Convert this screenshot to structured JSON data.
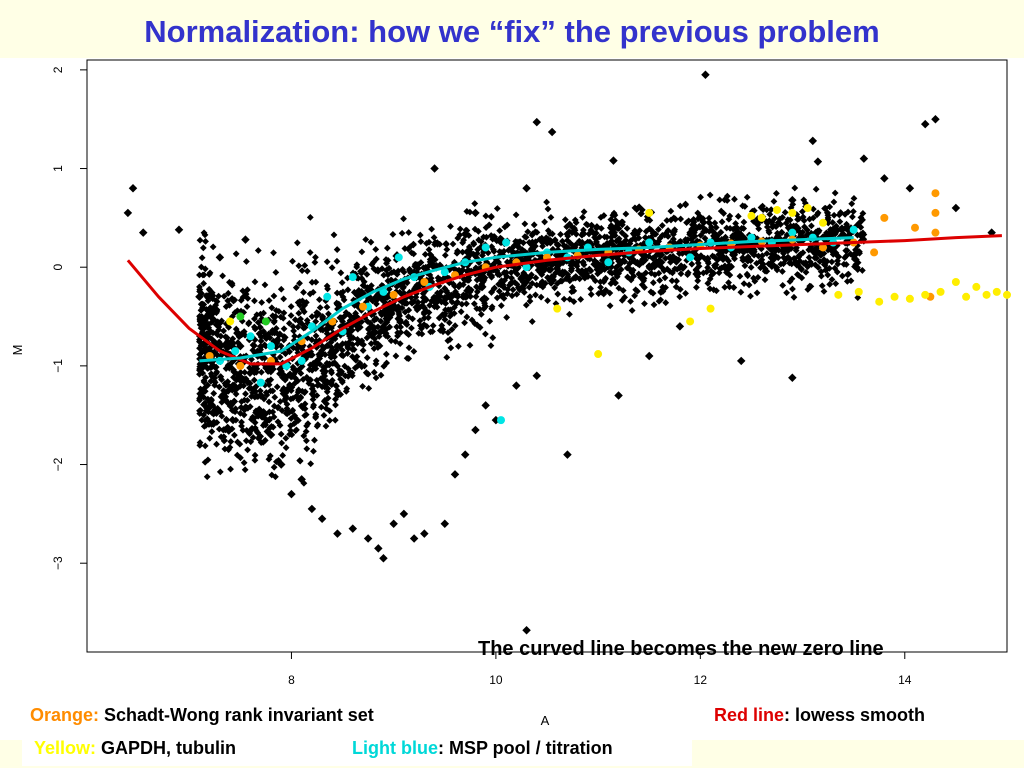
{
  "slide": {
    "title": "Normalization: how we “fix” the previous   problem",
    "annotation": "The curved line becomes the new zero line"
  },
  "legend": {
    "orange": {
      "key": "Orange:",
      "text": " Schadt-Wong rank invariant set",
      "color": "#ff8c00"
    },
    "red": {
      "key": "Red line",
      "text": ": lowess smooth",
      "color": "#dd0000"
    },
    "yellow": {
      "key": "Yellow:",
      "text": " GAPDH, tubulin",
      "color": "#ffff00"
    },
    "lightblue": {
      "key": "Light blue",
      "text": ": MSP pool / titration",
      "color": "#00e5e5"
    }
  },
  "chart_data": {
    "type": "scatter",
    "xlabel": "A",
    "ylabel": "M",
    "xlim": [
      6.0,
      15.0
    ],
    "ylim": [
      -3.9,
      2.1
    ],
    "xticks": [
      8,
      10,
      12,
      14
    ],
    "yticks": [
      -3,
      -2,
      -1,
      0,
      1,
      2
    ],
    "grid": false,
    "series": [
      {
        "color": "#000000",
        "points": [
          [
            6.4,
            0.55
          ],
          [
            6.45,
            0.8
          ],
          [
            6.55,
            0.35
          ],
          [
            6.9,
            0.38
          ],
          [
            7.1,
            -0.3
          ],
          [
            7.3,
            0.1
          ],
          [
            7.5,
            -0.8
          ],
          [
            7.55,
            0.28
          ],
          [
            7.7,
            -1.3
          ],
          [
            7.8,
            -1.7
          ],
          [
            7.9,
            -2.0
          ],
          [
            8.0,
            -2.3
          ],
          [
            8.1,
            -2.15
          ],
          [
            8.2,
            -2.45
          ],
          [
            8.3,
            -2.55
          ],
          [
            8.45,
            -2.7
          ],
          [
            8.6,
            -2.65
          ],
          [
            8.75,
            -2.75
          ],
          [
            8.85,
            -2.85
          ],
          [
            8.9,
            -2.95
          ],
          [
            9.0,
            -2.6
          ],
          [
            9.1,
            -2.5
          ],
          [
            9.2,
            -2.75
          ],
          [
            9.3,
            -2.7
          ],
          [
            9.5,
            -2.6
          ],
          [
            9.6,
            -2.1
          ],
          [
            9.7,
            -1.9
          ],
          [
            9.8,
            -1.65
          ],
          [
            9.9,
            -1.4
          ],
          [
            10.0,
            -1.55
          ],
          [
            10.2,
            -1.2
          ],
          [
            10.4,
            -1.1
          ],
          [
            10.7,
            -1.9
          ],
          [
            10.3,
            -3.68
          ],
          [
            11.2,
            -1.3
          ],
          [
            11.5,
            -0.9
          ],
          [
            11.8,
            -0.6
          ],
          [
            12.4,
            -0.95
          ],
          [
            12.9,
            -1.12
          ],
          [
            9.4,
            1.0
          ],
          [
            9.8,
            0.55
          ],
          [
            10.3,
            0.8
          ],
          [
            10.4,
            1.47
          ],
          [
            10.55,
            1.37
          ],
          [
            11.15,
            1.08
          ],
          [
            12.05,
            1.95
          ],
          [
            13.1,
            1.28
          ],
          [
            13.15,
            1.07
          ],
          [
            13.6,
            1.1
          ],
          [
            14.2,
            1.45
          ],
          [
            14.3,
            1.5
          ],
          [
            14.05,
            0.8
          ],
          [
            12.9,
            0.68
          ],
          [
            14.85,
            0.35
          ],
          [
            14.5,
            0.6
          ],
          [
            13.8,
            0.9
          ]
        ]
      },
      {
        "color": "#00e5e5",
        "points": [
          [
            7.3,
            -0.95
          ],
          [
            7.45,
            -0.85
          ],
          [
            7.6,
            -0.7
          ],
          [
            7.7,
            -1.17
          ],
          [
            7.8,
            -0.8
          ],
          [
            7.95,
            -1.0
          ],
          [
            8.1,
            -0.95
          ],
          [
            8.2,
            -0.6
          ],
          [
            8.35,
            -0.3
          ],
          [
            8.5,
            -0.65
          ],
          [
            8.6,
            -0.1
          ],
          [
            8.75,
            -0.4
          ],
          [
            8.9,
            -0.25
          ],
          [
            9.05,
            0.1
          ],
          [
            9.2,
            -0.1
          ],
          [
            9.35,
            -0.2
          ],
          [
            9.5,
            -0.05
          ],
          [
            9.7,
            0.05
          ],
          [
            9.9,
            0.2
          ],
          [
            10.1,
            0.25
          ],
          [
            10.05,
            -1.55
          ],
          [
            10.3,
            0.0
          ],
          [
            10.5,
            0.15
          ],
          [
            10.7,
            0.1
          ],
          [
            10.9,
            0.2
          ],
          [
            11.1,
            0.05
          ],
          [
            11.3,
            0.15
          ],
          [
            11.5,
            0.25
          ],
          [
            11.7,
            0.2
          ],
          [
            11.9,
            0.1
          ],
          [
            12.1,
            0.25
          ],
          [
            12.3,
            0.2
          ],
          [
            12.5,
            0.3
          ],
          [
            12.7,
            0.25
          ],
          [
            12.9,
            0.35
          ],
          [
            13.1,
            0.3
          ],
          [
            13.3,
            0.25
          ],
          [
            13.5,
            0.38
          ]
        ]
      },
      {
        "color": "#ff9900",
        "points": [
          [
            7.2,
            -0.9
          ],
          [
            7.5,
            -1.0
          ],
          [
            7.8,
            -0.95
          ],
          [
            8.1,
            -0.75
          ],
          [
            8.4,
            -0.55
          ],
          [
            8.7,
            -0.4
          ],
          [
            9.0,
            -0.28
          ],
          [
            9.3,
            -0.15
          ],
          [
            9.6,
            -0.08
          ],
          [
            9.9,
            0.0
          ],
          [
            10.2,
            0.05
          ],
          [
            10.5,
            0.1
          ],
          [
            10.8,
            0.12
          ],
          [
            11.1,
            0.15
          ],
          [
            11.4,
            0.18
          ],
          [
            11.7,
            0.2
          ],
          [
            12.0,
            0.22
          ],
          [
            12.3,
            0.24
          ],
          [
            12.6,
            0.26
          ],
          [
            12.9,
            0.28
          ],
          [
            13.2,
            0.2
          ],
          [
            13.5,
            0.25
          ],
          [
            13.8,
            0.5
          ],
          [
            14.1,
            0.4
          ],
          [
            14.3,
            0.75
          ],
          [
            14.3,
            0.55
          ],
          [
            14.3,
            0.35
          ],
          [
            13.7,
            0.15
          ],
          [
            14.25,
            -0.3
          ]
        ]
      },
      {
        "color": "#ffee00",
        "points": [
          [
            7.4,
            -0.55
          ],
          [
            10.6,
            -0.42
          ],
          [
            11.0,
            -0.88
          ],
          [
            12.1,
            -0.42
          ],
          [
            12.5,
            0.52
          ],
          [
            12.6,
            0.5
          ],
          [
            12.75,
            0.58
          ],
          [
            12.9,
            0.55
          ],
          [
            13.05,
            0.6
          ],
          [
            13.2,
            0.45
          ],
          [
            13.35,
            -0.28
          ],
          [
            13.55,
            -0.25
          ],
          [
            13.75,
            -0.35
          ],
          [
            13.9,
            -0.3
          ],
          [
            14.05,
            -0.32
          ],
          [
            14.2,
            -0.28
          ],
          [
            14.35,
            -0.25
          ],
          [
            14.5,
            -0.15
          ],
          [
            14.6,
            -0.3
          ],
          [
            14.7,
            -0.2
          ],
          [
            14.8,
            -0.28
          ],
          [
            14.9,
            -0.25
          ],
          [
            15.0,
            -0.28
          ],
          [
            11.9,
            -0.55
          ],
          [
            11.5,
            0.55
          ]
        ]
      },
      {
        "color": "#22cc22",
        "points": [
          [
            7.5,
            -0.5
          ],
          [
            7.75,
            -0.55
          ]
        ]
      }
    ],
    "lines": [
      {
        "color": "#dd0000",
        "points": [
          [
            6.4,
            0.07
          ],
          [
            6.7,
            -0.3
          ],
          [
            7.0,
            -0.62
          ],
          [
            7.3,
            -0.85
          ],
          [
            7.6,
            -0.98
          ],
          [
            7.9,
            -0.98
          ],
          [
            8.2,
            -0.82
          ],
          [
            8.5,
            -0.62
          ],
          [
            8.8,
            -0.45
          ],
          [
            9.1,
            -0.3
          ],
          [
            9.4,
            -0.18
          ],
          [
            9.7,
            -0.08
          ],
          [
            10.0,
            0.0
          ],
          [
            10.5,
            0.07
          ],
          [
            11.0,
            0.12
          ],
          [
            11.5,
            0.16
          ],
          [
            12.0,
            0.19
          ],
          [
            12.5,
            0.21
          ],
          [
            13.0,
            0.23
          ],
          [
            13.5,
            0.25
          ],
          [
            14.0,
            0.27
          ],
          [
            14.5,
            0.3
          ],
          [
            14.95,
            0.32
          ]
        ]
      },
      {
        "color": "#00cccc",
        "points": [
          [
            7.1,
            -0.95
          ],
          [
            7.5,
            -0.92
          ],
          [
            7.9,
            -0.85
          ],
          [
            8.2,
            -0.65
          ],
          [
            8.5,
            -0.42
          ],
          [
            8.8,
            -0.25
          ],
          [
            9.1,
            -0.12
          ],
          [
            9.4,
            -0.03
          ],
          [
            9.7,
            0.05
          ],
          [
            10.0,
            0.1
          ],
          [
            10.5,
            0.15
          ],
          [
            11.0,
            0.18
          ],
          [
            11.5,
            0.2
          ],
          [
            12.0,
            0.23
          ],
          [
            12.5,
            0.26
          ],
          [
            13.0,
            0.28
          ],
          [
            13.5,
            0.3
          ]
        ]
      }
    ]
  }
}
